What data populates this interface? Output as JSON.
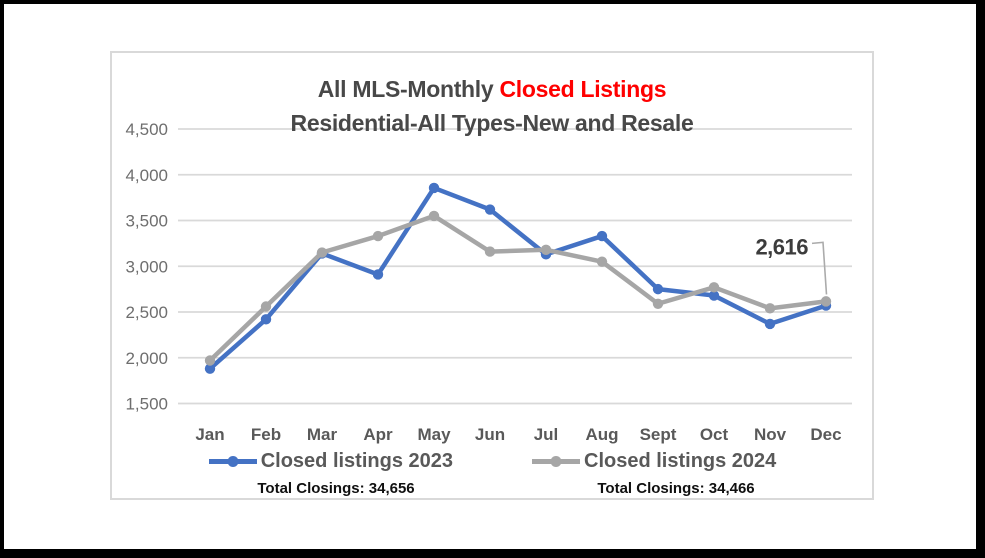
{
  "chart_data": {
    "type": "line",
    "title": {
      "part1": "All MLS-Monthly ",
      "part2": "Closed Listings",
      "subtitle": "Residential-All Types-New and Resale"
    },
    "categories": [
      "Jan",
      "Feb",
      "Mar",
      "Apr",
      "May",
      "Jun",
      "Jul",
      "Aug",
      "Sept",
      "Oct",
      "Nov",
      "Dec"
    ],
    "series": [
      {
        "name": "Closed listings 2023",
        "color": "#4472C4",
        "values": [
          1880,
          2420,
          3140,
          2910,
          3856,
          3620,
          3130,
          3330,
          2750,
          2680,
          2370,
          2570
        ],
        "total_label": "Total Closings: 34,656"
      },
      {
        "name": "Closed listings 2024",
        "color": "#A6A6A6",
        "values": [
          1970,
          2560,
          3150,
          3330,
          3550,
          3160,
          3180,
          3050,
          2590,
          2770,
          2540,
          2616
        ],
        "total_label": "Total Closings: 34,466"
      }
    ],
    "y_axis": {
      "min": 1500,
      "max": 4500,
      "step": 500,
      "tick_labels": [
        "4,500",
        "4,000",
        "3,500",
        "3,000",
        "2,500",
        "2,000",
        "1,500"
      ]
    },
    "grid": true,
    "legend_position": "bottom",
    "annotation": {
      "text": "2,616",
      "series_index": 1,
      "point_index": 11
    }
  },
  "colors": {
    "title_text": "#484848",
    "title_accent": "#FF0000",
    "gridline": "#D9D9D9",
    "axis_label": "#595959",
    "annotation_text": "#3C3C3C",
    "leader_line": "#ABABAB",
    "frame": "#000000",
    "chart_border": "#D9D9D9"
  }
}
